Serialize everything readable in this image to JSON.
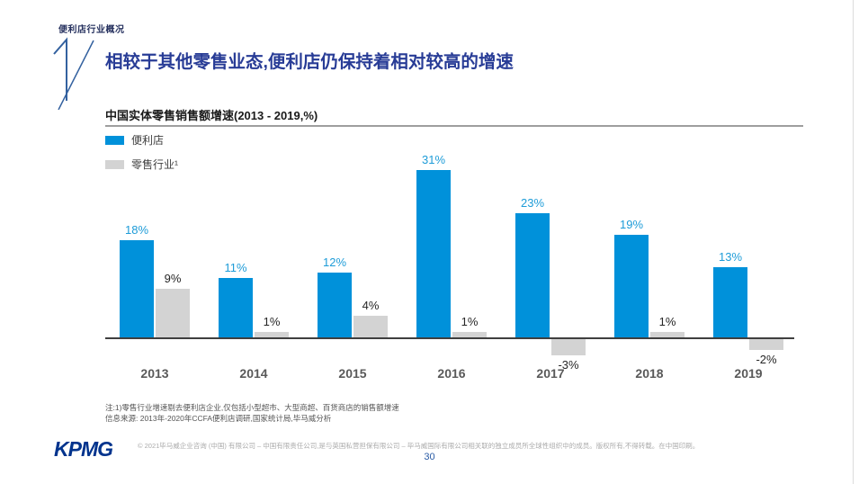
{
  "header": {
    "eyebrow": "便利店行业概况",
    "chapter_number": "1",
    "title": "相较于其他零售业态,便利店仍保持着相对较高的增速"
  },
  "chart_data": {
    "type": "bar",
    "title": "中国实体零售销售额增速(2013 - 2019,%)",
    "categories": [
      "2013",
      "2014",
      "2015",
      "2016",
      "2017",
      "2018",
      "2019"
    ],
    "series": [
      {
        "name": "便利店",
        "color": "#0091da",
        "label_color": "#1e9cd8",
        "values": [
          18,
          11,
          12,
          31,
          23,
          19,
          13
        ]
      },
      {
        "name": "零售行业¹",
        "color": "#d3d3d3",
        "label_color": "#262626",
        "values": [
          9,
          1,
          4,
          1,
          -3,
          1,
          -2
        ]
      }
    ],
    "value_suffix": "%",
    "ylim": [
      -5,
      35
    ],
    "grid": false,
    "legend_position": "top-left",
    "axis_color": "#3f3f3f"
  },
  "notes": {
    "line1": "注:1)零售行业增速剔去便利店企业,仅包括小型超市、大型商超、百货商店的销售额增速",
    "line2": "信息来源: 2013年-2020年CCFA便利店调研,国家统计局,毕马威分析"
  },
  "footer": {
    "logo": "KPMG",
    "copyright": "© 2021毕马威企业咨询 (中国) 有限公司 – 中国有限责任公司,是与英国私营担保有限公司 – 毕马威国际有限公司相关联的独立成员所全球性组织中的成员。版权所有,不得转载。在中国印刷。",
    "page_number": "30"
  }
}
